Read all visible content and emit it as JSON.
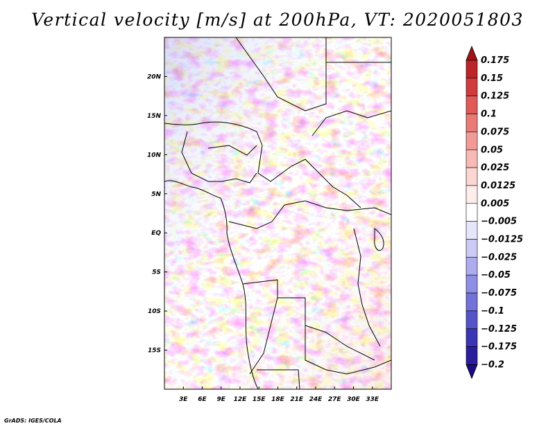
{
  "title": "Vertical velocity [m/s] at 200hPa, VT: 2020051803",
  "credit": "GrADS: IGES/COLA",
  "chart_data": {
    "type": "heatmap",
    "variable": "Vertical velocity",
    "units": "m/s",
    "level": "200hPa",
    "valid_time": "2020051803",
    "lon_range": [
      0,
      36
    ],
    "lat_range": [
      -20,
      25
    ],
    "x_ticks": [
      {
        "lon": 3,
        "label": "3E"
      },
      {
        "lon": 6,
        "label": "6E"
      },
      {
        "lon": 9,
        "label": "9E"
      },
      {
        "lon": 12,
        "label": "12E"
      },
      {
        "lon": 15,
        "label": "15E"
      },
      {
        "lon": 18,
        "label": "18E"
      },
      {
        "lon": 21,
        "label": "21E"
      },
      {
        "lon": 24,
        "label": "24E"
      },
      {
        "lon": 27,
        "label": "27E"
      },
      {
        "lon": 30,
        "label": "30E"
      },
      {
        "lon": 33,
        "label": "33E"
      }
    ],
    "y_ticks": [
      {
        "lat": 20,
        "label": "20N"
      },
      {
        "lat": 15,
        "label": "15N"
      },
      {
        "lat": 10,
        "label": "10N"
      },
      {
        "lat": 5,
        "label": "5N"
      },
      {
        "lat": 0,
        "label": "EQ"
      },
      {
        "lat": -5,
        "label": "5S"
      },
      {
        "lat": -10,
        "label": "10S"
      },
      {
        "lat": -15,
        "label": "15S"
      }
    ],
    "colorbar": {
      "levels": [
        "0.175",
        "0.15",
        "0.125",
        "0.1",
        "0.075",
        "0.05",
        "0.025",
        "0.0125",
        "0.005",
        "-0.005",
        "-0.0125",
        "-0.025",
        "-0.05",
        "-0.075",
        "-0.1",
        "-0.125",
        "-0.175",
        "-0.2"
      ],
      "colors": [
        "#a01418",
        "#bb2428",
        "#d03c3c",
        "#e05a58",
        "#ea7a76",
        "#f29a96",
        "#f7bab6",
        "#fbd6d2",
        "#fdeeec",
        "#ffffff",
        "#e6e6fb",
        "#cacaf5",
        "#acacee",
        "#8e8ee4",
        "#7272d8",
        "#5454c8",
        "#3a36b4",
        "#2a1e9c",
        "#1a0c80"
      ]
    }
  }
}
